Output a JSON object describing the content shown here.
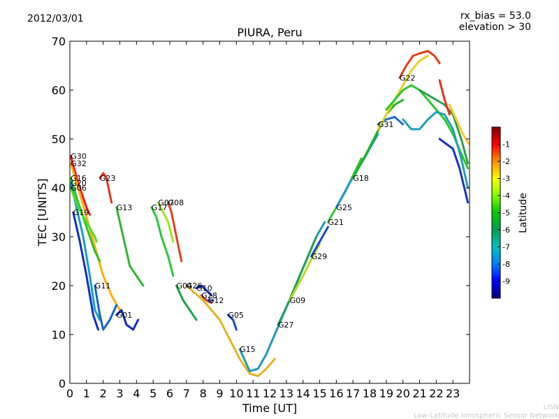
{
  "header": {
    "date": "2012/03/01",
    "rx_bias": "rx_bias = 53.0",
    "elevation": "elevation > 30"
  },
  "footer": {
    "line1": "LISN",
    "line2": "Low-Latitude Ionospheric Sensor Network"
  },
  "chart_data": {
    "type": "line",
    "title": "PIURA, Peru",
    "xlabel": "Time [UT]",
    "ylabel": "TEC [UNITS]",
    "xlim": [
      0,
      24
    ],
    "ylim": [
      0,
      70
    ],
    "xticks": [
      0,
      1,
      2,
      3,
      4,
      5,
      6,
      7,
      8,
      9,
      10,
      11,
      12,
      13,
      14,
      15,
      16,
      17,
      18,
      19,
      20,
      21,
      22,
      23
    ],
    "yticks": [
      0,
      10,
      20,
      30,
      40,
      50,
      60,
      70
    ],
    "grid": false,
    "colorbar": {
      "label": "Latitude",
      "ticks": [
        -1,
        -2,
        -3,
        -4,
        -5,
        -6,
        -7,
        -8,
        -9
      ],
      "range": [
        -10,
        0
      ],
      "colors": [
        "#00007f",
        "#0000ff",
        "#007fff",
        "#00bfbf",
        "#00a050",
        "#00c800",
        "#7fff00",
        "#ffff00",
        "#ff8c00",
        "#ff0000",
        "#7f0000"
      ]
    },
    "series": [
      {
        "name": "G30",
        "color": "#ee1a1a",
        "points": [
          [
            0.05,
            46.5
          ],
          [
            0.5,
            41
          ],
          [
            1.0,
            36
          ],
          [
            1.2,
            34.5
          ]
        ]
      },
      {
        "name": "G32",
        "color": "#ffb000",
        "points": [
          [
            0.05,
            45
          ],
          [
            0.5,
            40
          ],
          [
            1.0,
            34
          ],
          [
            1.5,
            28
          ],
          [
            2.0,
            22
          ],
          [
            2.5,
            18
          ],
          [
            3.0,
            15
          ]
        ]
      },
      {
        "name": "G16",
        "color": "#2ac02a",
        "points": [
          [
            0.05,
            42
          ],
          [
            0.5,
            37
          ],
          [
            1.0,
            32
          ],
          [
            1.5,
            27
          ],
          [
            1.8,
            25
          ]
        ]
      },
      {
        "name": "G20",
        "color": "#11a0c8",
        "points": [
          [
            0.05,
            41
          ],
          [
            0.4,
            36
          ],
          [
            0.8,
            30
          ],
          [
            1.2,
            22
          ],
          [
            1.5,
            15
          ],
          [
            1.8,
            13
          ]
        ]
      },
      {
        "name": "G06",
        "color": "#50dc28",
        "points": [
          [
            0.05,
            40
          ],
          [
            0.5,
            36
          ],
          [
            1.0,
            33
          ],
          [
            1.5,
            30
          ],
          [
            1.6,
            29
          ]
        ]
      },
      {
        "name": "G19",
        "color": "#1030c0",
        "points": [
          [
            0.2,
            35
          ],
          [
            0.6,
            29
          ],
          [
            1.0,
            22
          ],
          [
            1.4,
            14
          ],
          [
            1.7,
            11
          ]
        ]
      },
      {
        "name": "G23",
        "color": "#e0321e",
        "points": [
          [
            1.8,
            42
          ],
          [
            2.0,
            43
          ],
          [
            2.2,
            42
          ],
          [
            2.5,
            37
          ]
        ]
      },
      {
        "name": "G11",
        "color": "#1464c8",
        "points": [
          [
            1.5,
            20
          ],
          [
            1.8,
            14
          ],
          [
            2.0,
            11
          ],
          [
            2.4,
            13
          ],
          [
            2.8,
            16
          ]
        ]
      },
      {
        "name": "G01",
        "color": "#1428b4",
        "points": [
          [
            2.8,
            14
          ],
          [
            3.1,
            15
          ],
          [
            3.4,
            12
          ],
          [
            3.8,
            11
          ],
          [
            4.1,
            13
          ]
        ]
      },
      {
        "name": "G13",
        "color": "#32b432",
        "points": [
          [
            2.8,
            36
          ],
          [
            3.2,
            30
          ],
          [
            3.6,
            24
          ],
          [
            4.0,
            22
          ],
          [
            4.4,
            20
          ]
        ]
      },
      {
        "name": "G17",
        "color": "#28c838",
        "points": [
          [
            4.9,
            36
          ],
          [
            5.2,
            34
          ],
          [
            5.5,
            30
          ],
          [
            5.9,
            26
          ],
          [
            6.2,
            22
          ]
        ]
      },
      {
        "name": "G07",
        "color": "#9ae61e",
        "points": [
          [
            5.3,
            37
          ],
          [
            5.6,
            35
          ],
          [
            5.9,
            33
          ],
          [
            6.2,
            29
          ]
        ]
      },
      {
        "name": "G08",
        "color": "#e63a1e",
        "points": [
          [
            5.9,
            37
          ],
          [
            6.1,
            35
          ],
          [
            6.4,
            30
          ],
          [
            6.7,
            25
          ]
        ]
      },
      {
        "name": "G04",
        "color": "#1ea04a",
        "points": [
          [
            6.4,
            20
          ],
          [
            6.8,
            17
          ],
          [
            7.2,
            15
          ],
          [
            7.6,
            13
          ]
        ]
      },
      {
        "name": "G10",
        "color": "#1a32c8",
        "points": [
          [
            7.6,
            19.5
          ],
          [
            7.9,
            20
          ],
          [
            8.2,
            19
          ],
          [
            8.5,
            18
          ]
        ]
      },
      {
        "name": "G28",
        "color": "#d23c1e",
        "points": [
          [
            7.9,
            18
          ],
          [
            8.2,
            17
          ],
          [
            8.5,
            16.5
          ]
        ]
      },
      {
        "name": "G12",
        "color": "#1a4ec8",
        "points": [
          [
            8.3,
            17
          ],
          [
            8.6,
            17
          ]
        ]
      },
      {
        "name": "G05",
        "color": "#1a46c8",
        "points": [
          [
            9.5,
            14
          ],
          [
            9.8,
            13
          ],
          [
            10.0,
            11
          ]
        ]
      },
      {
        "name": "G26",
        "color": "#e0b41e",
        "points": [
          [
            7.0,
            20
          ],
          [
            8.0,
            17
          ],
          [
            9.0,
            13
          ],
          [
            9.6,
            9
          ],
          [
            10.2,
            5
          ],
          [
            10.8,
            2
          ],
          [
            11.3,
            1.5
          ],
          [
            11.8,
            3
          ],
          [
            12.3,
            5
          ]
        ]
      },
      {
        "name": "G15",
        "color": "#1e9ab4",
        "points": [
          [
            10.2,
            7
          ],
          [
            10.8,
            2.5
          ],
          [
            11.3,
            3
          ],
          [
            11.8,
            6
          ],
          [
            12.3,
            10
          ],
          [
            12.8,
            14
          ],
          [
            13.3,
            18
          ],
          [
            13.8,
            22
          ],
          [
            14.3,
            26
          ],
          [
            14.8,
            30
          ],
          [
            15.3,
            33
          ]
        ]
      },
      {
        "name": "G27",
        "color": "#1ea05a",
        "points": [
          [
            12.5,
            12
          ],
          [
            13.2,
            17
          ],
          [
            13.8,
            22
          ],
          [
            14.3,
            26
          ],
          [
            14.8,
            30
          ]
        ]
      },
      {
        "name": "G09",
        "color": "#b4dc1e",
        "points": [
          [
            13.2,
            17
          ],
          [
            14.0,
            22
          ],
          [
            14.6,
            26
          ],
          [
            15.0,
            28.5
          ]
        ]
      },
      {
        "name": "G29",
        "color": "#1a46c8",
        "points": [
          [
            14.5,
            26
          ],
          [
            15.0,
            29
          ],
          [
            15.5,
            32
          ]
        ]
      },
      {
        "name": "G21",
        "color": "#32c832",
        "points": [
          [
            15.5,
            33
          ],
          [
            16.0,
            36
          ],
          [
            16.5,
            39
          ],
          [
            17.0,
            42.5
          ],
          [
            17.5,
            46
          ]
        ]
      },
      {
        "name": "G25",
        "color": "#1a9ac8",
        "points": [
          [
            16.0,
            36
          ],
          [
            16.8,
            41
          ],
          [
            17.5,
            45
          ],
          [
            18.0,
            48
          ],
          [
            18.5,
            51
          ]
        ]
      },
      {
        "name": "G18",
        "color": "#1eb41e",
        "points": [
          [
            17.0,
            42
          ],
          [
            17.8,
            47
          ],
          [
            18.4,
            51
          ],
          [
            19.0,
            55
          ],
          [
            19.5,
            57
          ],
          [
            20.0,
            58
          ]
        ]
      },
      {
        "name": "G31",
        "color": "#1e6ec8",
        "points": [
          [
            18.5,
            53
          ],
          [
            19.0,
            54
          ],
          [
            19.5,
            54.5
          ],
          [
            20.0,
            53
          ]
        ]
      },
      {
        "name": "G22",
        "color": "#e03c1e",
        "points": [
          [
            19.8,
            62.5
          ],
          [
            20.2,
            65
          ],
          [
            20.6,
            67
          ],
          [
            21.0,
            67.5
          ],
          [
            21.5,
            68
          ],
          [
            21.9,
            67
          ],
          [
            22.2,
            65.5
          ]
        ]
      },
      {
        "name": "",
        "color": "#e6d21e",
        "points": [
          [
            18.5,
            52
          ],
          [
            19.0,
            55
          ],
          [
            19.5,
            58
          ],
          [
            20.0,
            61
          ],
          [
            20.5,
            64
          ],
          [
            21.0,
            66
          ],
          [
            21.5,
            67
          ]
        ]
      },
      {
        "name": "",
        "color": "#2ac82a",
        "points": [
          [
            19.0,
            56
          ],
          [
            19.5,
            58
          ],
          [
            20.0,
            60
          ],
          [
            20.5,
            61
          ],
          [
            21.0,
            60
          ],
          [
            21.5,
            58
          ],
          [
            22.0,
            56
          ],
          [
            22.5,
            54
          ],
          [
            23.0,
            51
          ],
          [
            23.5,
            47
          ],
          [
            23.9,
            44
          ]
        ]
      },
      {
        "name": "",
        "color": "#1ea0b4",
        "points": [
          [
            20.0,
            54
          ],
          [
            20.5,
            52
          ],
          [
            21.0,
            52
          ],
          [
            21.5,
            54
          ],
          [
            22.0,
            55.5
          ],
          [
            22.5,
            55
          ],
          [
            23.0,
            52
          ],
          [
            23.5,
            46
          ],
          [
            23.9,
            40
          ]
        ]
      },
      {
        "name": "",
        "color": "#28a050",
        "points": [
          [
            21.0,
            60
          ],
          [
            21.5,
            59
          ],
          [
            22.0,
            58
          ],
          [
            22.5,
            57
          ],
          [
            23.0,
            55
          ],
          [
            23.5,
            50
          ],
          [
            23.9,
            45
          ]
        ]
      },
      {
        "name": "",
        "color": "#1a32c8",
        "points": [
          [
            22.2,
            50
          ],
          [
            22.6,
            49
          ],
          [
            23.0,
            48
          ],
          [
            23.4,
            44
          ],
          [
            23.9,
            37
          ]
        ]
      },
      {
        "name": "",
        "color": "#ffc81e",
        "points": [
          [
            22.8,
            57
          ],
          [
            23.2,
            54
          ],
          [
            23.6,
            51
          ],
          [
            23.95,
            49
          ]
        ]
      },
      {
        "name": "",
        "color": "#e6321e",
        "points": [
          [
            22.2,
            62
          ],
          [
            22.5,
            58
          ],
          [
            22.8,
            55
          ]
        ]
      }
    ]
  }
}
